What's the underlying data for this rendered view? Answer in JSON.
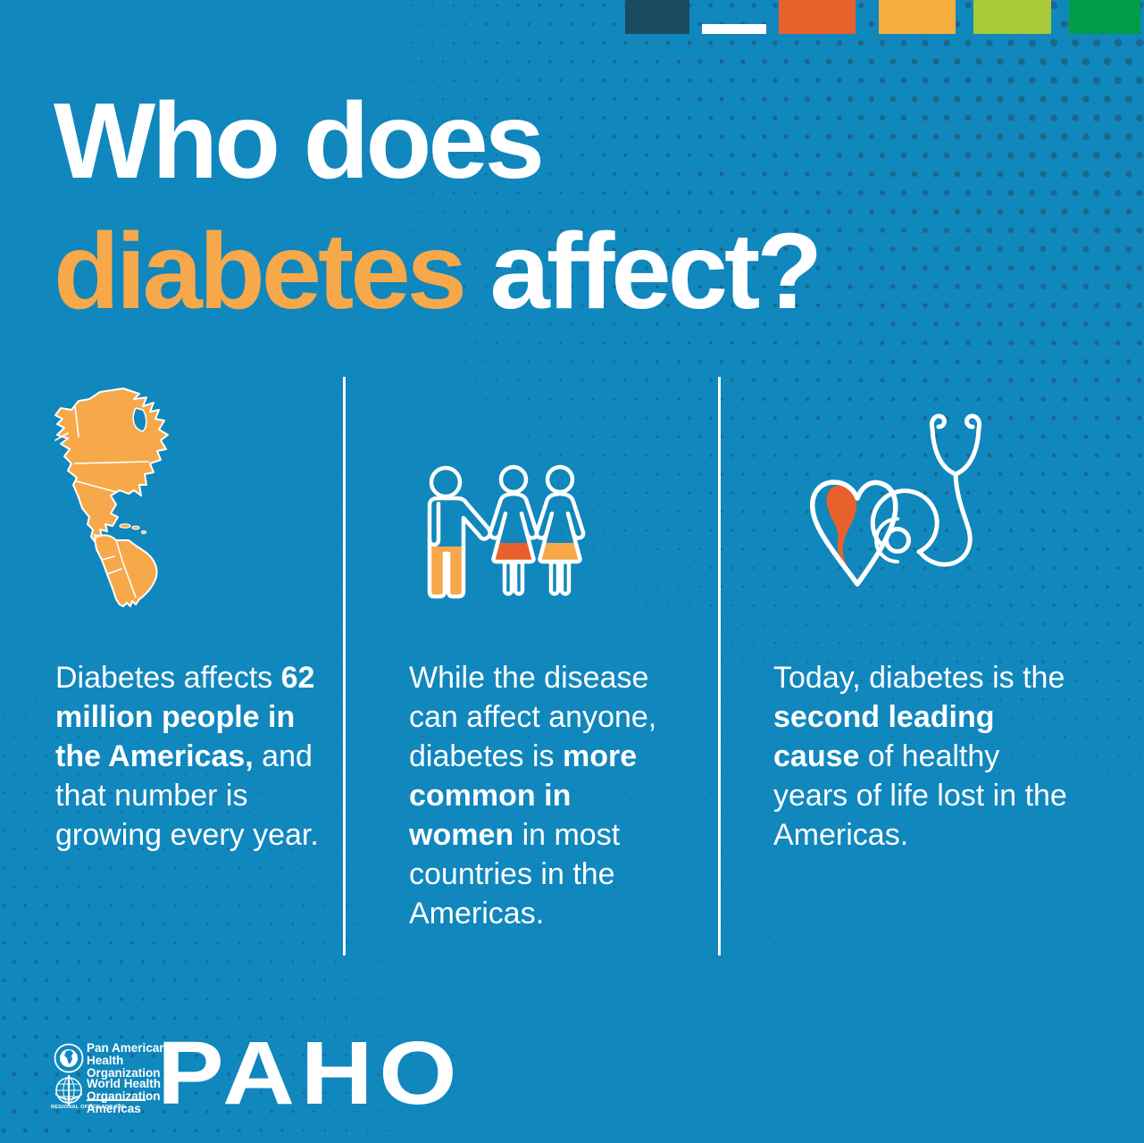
{
  "colors": {
    "bg": "#1087BD",
    "dot": "#1D6285",
    "orange": "#F7A84A",
    "redorange": "#E8602C",
    "navy": "#1A4B61",
    "white": "#FFFFFF",
    "yellow": "#F6AD3F",
    "lime": "#A9C938",
    "green": "#029B47"
  },
  "top_bar": {
    "blocks": [
      {
        "name": "navy-block",
        "color": "colors.navy"
      },
      {
        "name": "white-bar",
        "color": "colors.white"
      },
      {
        "name": "orange-block",
        "color": "colors.redorange"
      },
      {
        "name": "yellow-block",
        "color": "colors.yellow"
      },
      {
        "name": "lime-block",
        "color": "colors.lime"
      },
      {
        "name": "green-block",
        "color": "colors.green"
      }
    ]
  },
  "title": {
    "line1": "Who does",
    "line2_orange": "diabetes",
    "line2_rest": " affect?"
  },
  "columns": [
    {
      "icon": "americas-map-icon",
      "text": [
        {
          "t": "Diabetes affects ",
          "b": 0
        },
        {
          "t": "62 million people in the Americas,",
          "b": 1
        },
        {
          "t": " and that number is growing every year.",
          "b": 0
        }
      ]
    },
    {
      "icon": "family-icon",
      "text": [
        {
          "t": "While the disease can affect anyone, diabetes is ",
          "b": 0
        },
        {
          "t": "more common in women",
          "b": 1
        },
        {
          "t": " in most countries in the Americas.",
          "b": 0
        }
      ]
    },
    {
      "icon": "heart-stethoscope-icon",
      "text": [
        {
          "t": "Today, diabetes is the ",
          "b": 0
        },
        {
          "t": "second leading cause",
          "b": 1
        },
        {
          "t": " of healthy years of life lost in the Americas.",
          "b": 0
        }
      ]
    }
  ],
  "footer": {
    "paho_org_lines": "Pan American\nHealth\nOrganization",
    "who_org_lines": "World Health\nOrganization",
    "regional_office": "REGIONAL OFFICE FOR THE",
    "americas": "Americas",
    "wordmark": "PAHO"
  }
}
